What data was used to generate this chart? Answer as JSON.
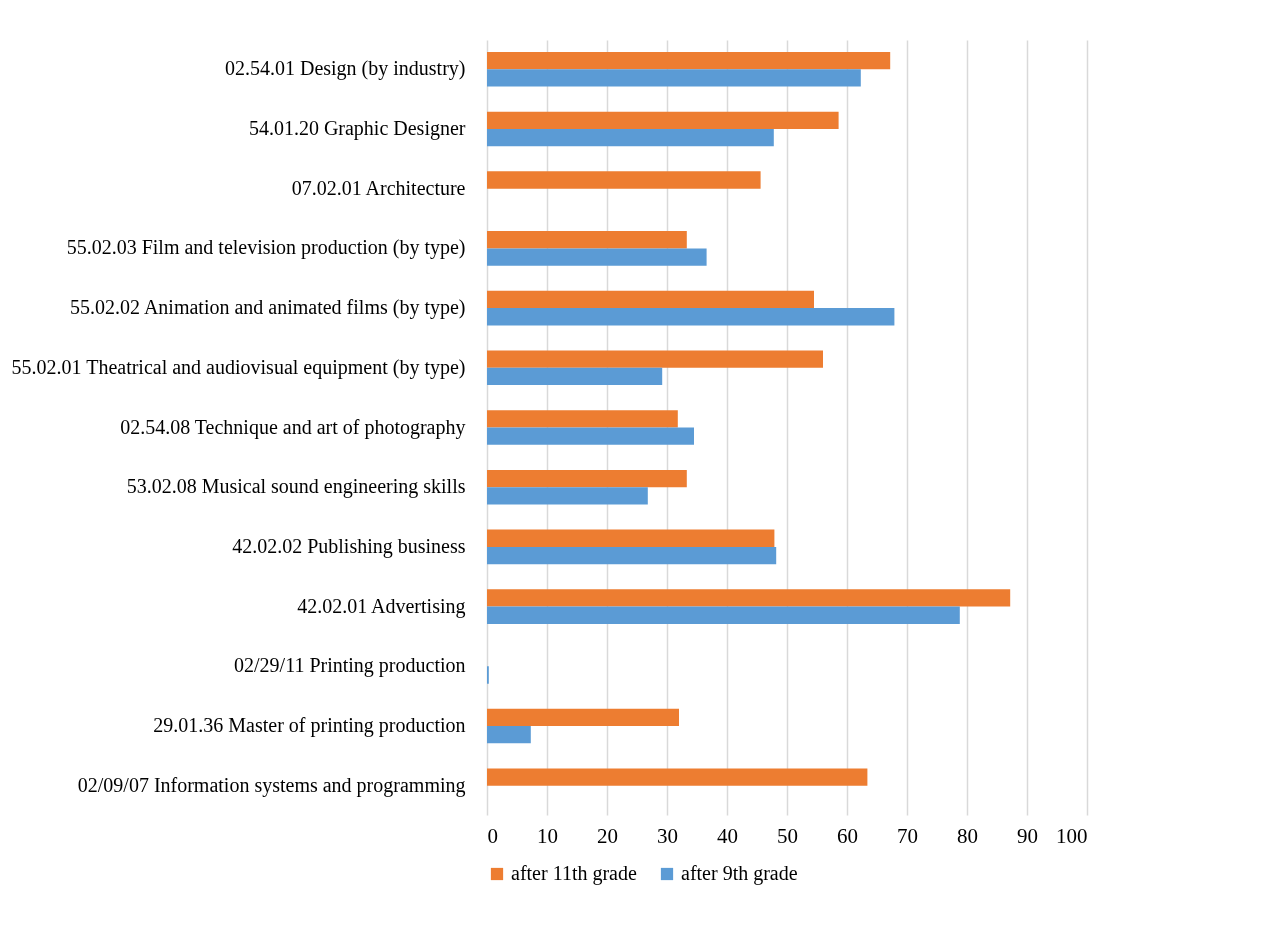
{
  "chart_data": {
    "type": "bar",
    "orientation": "horizontal",
    "categories": [
      "02.54.01 Design (by industry)",
      "54.01.20 Graphic Designer",
      "07.02.01 Architecture",
      "55.02.03 Film and television production (by type)",
      "55.02.02 Animation and animated films (by type)",
      "55.02.01 Theatrical and audiovisual equipment (by type)",
      "02.54.08 Technique and art of photography",
      "53.02.08 Musical sound engineering skills",
      "42.02.02 Publishing business",
      "42.02.01 Advertising",
      "02/29/11 Printing production",
      "29.01.36 Master of printing production",
      "02/09/07 Information systems and programming"
    ],
    "series": [
      {
        "name": "after 11th grade",
        "color": "#ed7d31",
        "values": [
          67.2,
          58.6,
          45.6,
          33.3,
          54.5,
          56.0,
          31.8,
          33.3,
          47.9,
          87.2,
          null,
          32.0,
          63.4
        ]
      },
      {
        "name": "after 9th grade",
        "color": "#5b9bd5",
        "values": [
          62.3,
          47.8,
          null,
          36.6,
          67.9,
          29.2,
          34.5,
          26.8,
          48.2,
          78.8,
          0.3,
          7.3,
          null
        ]
      }
    ],
    "xlim": [
      0,
      100
    ],
    "xticks": [
      0,
      10,
      20,
      30,
      40,
      50,
      60,
      70,
      80,
      90,
      100
    ],
    "grid": "x",
    "legend": "bottom"
  }
}
